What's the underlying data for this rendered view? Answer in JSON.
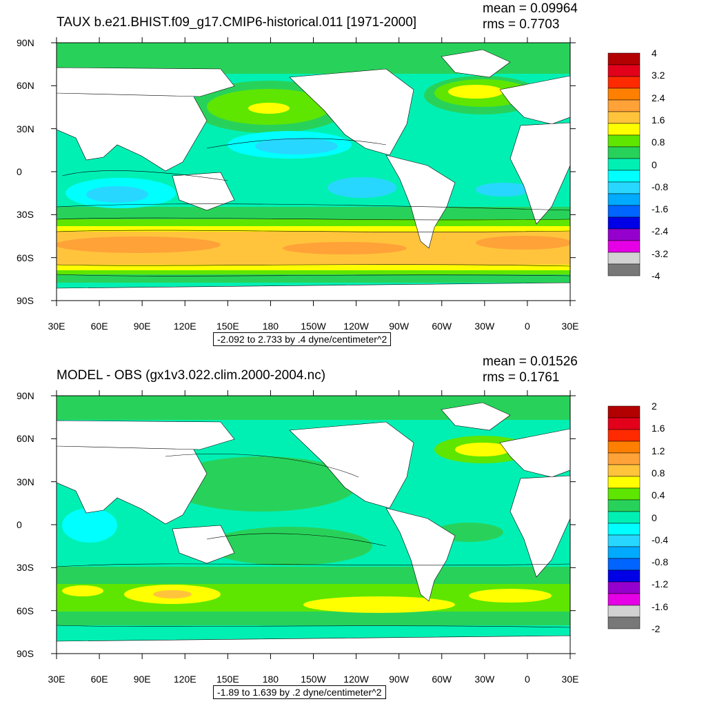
{
  "panels": [
    {
      "title": "TAUX b.e21.BHIST.f09_g17.CMIP6-historical.011 [1971-2000]",
      "mean": "mean = 0.09964",
      "rms": "rms = 0.7703",
      "info": "-2.092 to 2.733 by .4 dyne/centimeter^2",
      "colorbar_labels": [
        "4",
        "3.2",
        "2.4",
        "1.6",
        "0.8",
        "0",
        "-0.8",
        "-1.6",
        "-2.4",
        "-3.2",
        "-4"
      ],
      "colorbar_colors": [
        "#b30000",
        "#e3001b",
        "#ff2a00",
        "#ff7f00",
        "#ffa238",
        "#ffc43c",
        "#ffff00",
        "#5ee600",
        "#28d25a",
        "#00f0b4",
        "#00ffff",
        "#28d7ff",
        "#00aaff",
        "#0064ff",
        "#0000e6",
        "#9600cd",
        "#e600e6",
        "#d2d2d2",
        "#787878"
      ]
    },
    {
      "title": "MODEL - OBS (gx1v3.022.clim.2000-2004.nc)",
      "mean": "mean = 0.01526",
      "rms": "rms = 0.1761",
      "info": "-1.89 to 1.639 by .2 dyne/centimeter^2",
      "colorbar_labels": [
        "2",
        "1.6",
        "1.2",
        "0.8",
        "0.4",
        "0",
        "-0.4",
        "-0.8",
        "-1.2",
        "-1.6",
        "-2"
      ],
      "colorbar_colors": [
        "#b30000",
        "#e3001b",
        "#ff2a00",
        "#ff7f00",
        "#ffa238",
        "#ffc43c",
        "#ffff00",
        "#5ee600",
        "#28d25a",
        "#00f0b4",
        "#00ffff",
        "#28d7ff",
        "#00aaff",
        "#0064ff",
        "#0000e6",
        "#9600cd",
        "#e600e6",
        "#d2d2d2",
        "#787878"
      ]
    }
  ],
  "lat_labels": [
    "90N",
    "60N",
    "30N",
    "0",
    "30S",
    "60S",
    "90S"
  ],
  "lon_labels": [
    "30E",
    "60E",
    "90E",
    "120E",
    "150E",
    "180",
    "150W",
    "120W",
    "90W",
    "60W",
    "30W",
    "0",
    "30E"
  ],
  "palette": {
    "land": "#ffffff",
    "base_field": "#00f0b4",
    "positive_band": "#28d25a",
    "yellow": "#ffff00",
    "orange": "#ffc43c",
    "blue": "#28d7ff"
  }
}
